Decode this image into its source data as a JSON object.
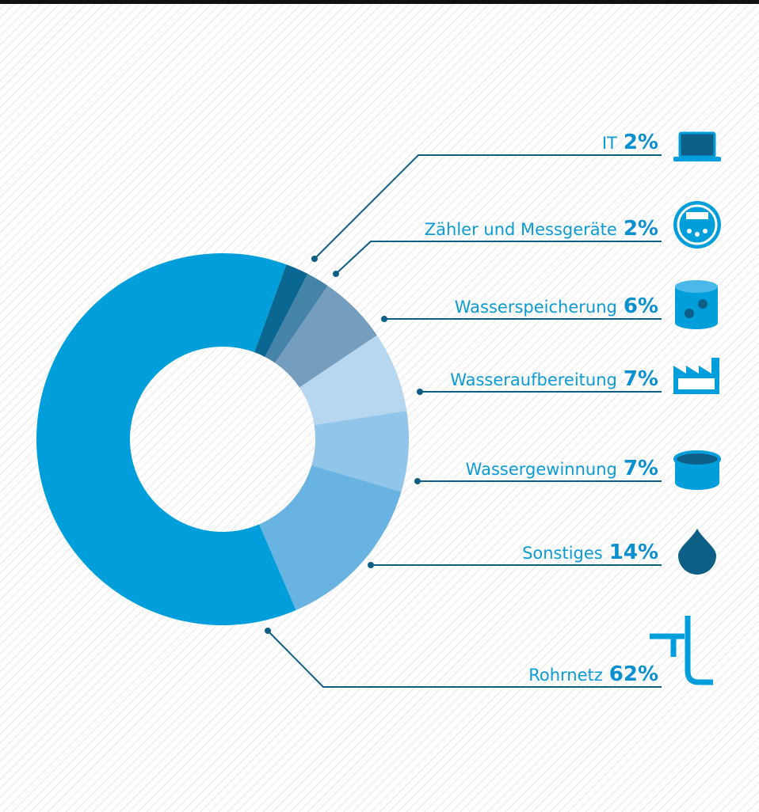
{
  "chart_data": {
    "type": "donut",
    "categories": [
      "IT",
      "Zähler und Messgeräte",
      "Wasserspeicherung",
      "Wasseraufbereitung",
      "Wassergewinnung",
      "Sonstiges",
      "Rohrnetz"
    ],
    "values": [
      2,
      2,
      6,
      7,
      7,
      14,
      62
    ],
    "value_labels": [
      "2%",
      "2%",
      "6%",
      "7%",
      "7%",
      "14%",
      "62%"
    ],
    "colors": [
      "#0a6791",
      "#4683a8",
      "#749dbe",
      "#b7d6ef",
      "#91c5ea",
      "#69b3e3",
      "#009fdb"
    ]
  }
}
